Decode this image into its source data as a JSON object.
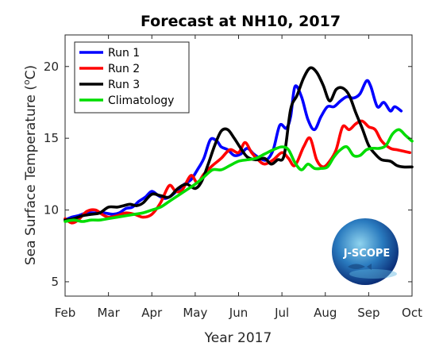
{
  "chart_data": {
    "type": "line",
    "title": "Forecast at NH10, 2017",
    "xlabel": "Year 2017",
    "ylabel_prefix": "Sea Surface Temperature (",
    "ylabel_unit_sup": "o",
    "ylabel_suffix": "C)",
    "x_unit": "months since Feb 1, 2017",
    "xlim": [
      0,
      8
    ],
    "ylim": [
      4,
      22.2
    ],
    "x_ticks": [
      {
        "x": 0,
        "label": "Feb"
      },
      {
        "x": 1,
        "label": "Mar"
      },
      {
        "x": 2,
        "label": "Apr"
      },
      {
        "x": 3,
        "label": "May"
      },
      {
        "x": 4,
        "label": "Jun"
      },
      {
        "x": 5,
        "label": "Jul"
      },
      {
        "x": 6,
        "label": "Aug"
      },
      {
        "x": 7,
        "label": "Sep"
      },
      {
        "x": 8,
        "label": "Oct"
      }
    ],
    "y_ticks": [
      5,
      10,
      15,
      20
    ],
    "grid": false,
    "legend_position": "top-left",
    "series": [
      {
        "name": "Run 1",
        "color": "#0000ff",
        "x": [
          0,
          0.15,
          0.3,
          0.5,
          0.7,
          0.9,
          1.1,
          1.25,
          1.4,
          1.55,
          1.7,
          1.85,
          2.0,
          2.15,
          2.3,
          2.45,
          2.6,
          2.75,
          2.9,
          3.05,
          3.2,
          3.35,
          3.5,
          3.6,
          3.75,
          3.9,
          4.05,
          4.2,
          4.35,
          4.5,
          4.65,
          4.8,
          4.95,
          5.1,
          5.2,
          5.3,
          5.45,
          5.6,
          5.75,
          5.9,
          6.05,
          6.2,
          6.35,
          6.5,
          6.65,
          6.8,
          6.95,
          7.05,
          7.2,
          7.35,
          7.5,
          7.6,
          7.75
        ],
        "y": [
          9.3,
          9.5,
          9.6,
          9.8,
          9.8,
          9.8,
          9.7,
          9.8,
          10.1,
          10.2,
          10.6,
          10.9,
          11.3,
          11.0,
          10.8,
          11.0,
          11.4,
          11.8,
          12.1,
          12.8,
          13.6,
          14.9,
          14.8,
          14.4,
          14.2,
          13.8,
          13.9,
          14.3,
          13.9,
          13.6,
          13.5,
          14.2,
          15.9,
          15.7,
          16.5,
          18.6,
          17.9,
          16.3,
          15.6,
          16.5,
          17.2,
          17.2,
          17.6,
          17.9,
          17.8,
          18.1,
          19.0,
          18.6,
          17.2,
          17.5,
          16.9,
          17.2,
          16.9
        ]
      },
      {
        "name": "Run 2",
        "color": "#ff0000",
        "x": [
          0,
          0.15,
          0.3,
          0.5,
          0.7,
          0.85,
          1.0,
          1.2,
          1.4,
          1.6,
          1.8,
          2.0,
          2.2,
          2.4,
          2.55,
          2.7,
          2.9,
          3.05,
          3.2,
          3.4,
          3.6,
          3.8,
          4.0,
          4.15,
          4.3,
          4.45,
          4.6,
          4.8,
          5.0,
          5.15,
          5.3,
          5.5,
          5.65,
          5.8,
          5.95,
          6.1,
          6.25,
          6.4,
          6.55,
          6.7,
          6.85,
          7.0,
          7.15,
          7.3,
          7.5,
          7.65,
          7.8,
          7.95
        ],
        "y": [
          9.4,
          9.1,
          9.3,
          9.9,
          10.0,
          9.7,
          9.5,
          9.6,
          9.8,
          9.7,
          9.5,
          9.7,
          10.5,
          11.7,
          11.3,
          11.4,
          12.4,
          11.9,
          12.5,
          13.1,
          13.6,
          14.2,
          14.0,
          14.7,
          14.0,
          13.5,
          13.2,
          13.5,
          14.0,
          13.6,
          13.1,
          14.4,
          15.0,
          13.5,
          13.0,
          13.4,
          14.2,
          15.8,
          15.6,
          16.0,
          16.2,
          15.8,
          15.6,
          14.8,
          14.3,
          14.2,
          14.1,
          14.0
        ]
      },
      {
        "name": "Run 3",
        "color": "#000000",
        "x": [
          0,
          0.2,
          0.4,
          0.6,
          0.8,
          1.0,
          1.2,
          1.35,
          1.5,
          1.65,
          1.8,
          2.0,
          2.2,
          2.4,
          2.6,
          2.8,
          3.0,
          3.15,
          3.3,
          3.45,
          3.6,
          3.75,
          3.9,
          4.05,
          4.2,
          4.4,
          4.6,
          4.75,
          4.9,
          5.05,
          5.2,
          5.35,
          5.5,
          5.65,
          5.8,
          5.95,
          6.1,
          6.25,
          6.4,
          6.55,
          6.7,
          6.85,
          7.0,
          7.15,
          7.3,
          7.5,
          7.65,
          7.8,
          8.0
        ],
        "y": [
          9.3,
          9.4,
          9.6,
          9.7,
          9.8,
          10.2,
          10.2,
          10.3,
          10.4,
          10.3,
          10.5,
          11.1,
          11.0,
          10.9,
          11.5,
          11.8,
          11.5,
          12.0,
          13.2,
          14.5,
          15.5,
          15.6,
          15.0,
          14.3,
          13.7,
          13.5,
          13.6,
          13.2,
          13.5,
          13.8,
          17.0,
          18.0,
          19.2,
          19.9,
          19.6,
          18.7,
          17.6,
          18.4,
          18.5,
          18.0,
          16.8,
          15.7,
          14.5,
          13.9,
          13.5,
          13.4,
          13.1,
          13.0,
          13.0
        ]
      },
      {
        "name": "Climatology",
        "color": "#00dd00",
        "x": [
          0,
          0.2,
          0.4,
          0.6,
          0.8,
          1.0,
          1.2,
          1.4,
          1.6,
          1.8,
          2.0,
          2.2,
          2.4,
          2.6,
          2.8,
          3.0,
          3.2,
          3.4,
          3.6,
          3.8,
          4.0,
          4.2,
          4.4,
          4.6,
          4.8,
          5.0,
          5.15,
          5.3,
          5.45,
          5.6,
          5.75,
          5.9,
          6.05,
          6.2,
          6.35,
          6.5,
          6.65,
          6.8,
          6.95,
          7.1,
          7.25,
          7.4,
          7.55,
          7.7,
          7.85,
          8.0
        ],
        "y": [
          9.2,
          9.3,
          9.2,
          9.3,
          9.3,
          9.4,
          9.5,
          9.6,
          9.7,
          9.8,
          10.0,
          10.2,
          10.6,
          11.0,
          11.4,
          11.8,
          12.3,
          12.8,
          12.8,
          13.1,
          13.4,
          13.5,
          13.6,
          13.9,
          14.2,
          14.4,
          14.2,
          13.3,
          12.8,
          13.2,
          12.9,
          12.9,
          13.0,
          13.7,
          14.2,
          14.4,
          13.8,
          13.8,
          14.2,
          14.3,
          14.3,
          14.5,
          15.3,
          15.6,
          15.2,
          14.8
        ]
      }
    ]
  },
  "logo": {
    "text": "J-SCOPE",
    "colors": {
      "core": "#8fd3ee",
      "mid": "#2a7bbf",
      "edge": "#0b2f78"
    }
  },
  "colors": {
    "axis": "#262626"
  }
}
